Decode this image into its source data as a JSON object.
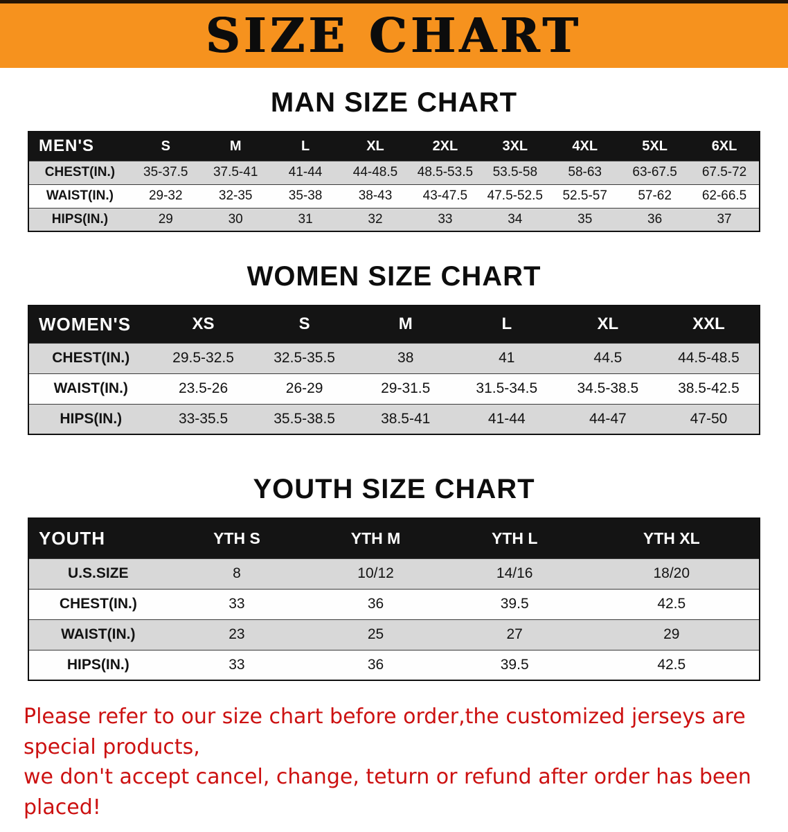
{
  "banner": {
    "title": "SIZE CHART",
    "bg_color": "#f6921e"
  },
  "sections": [
    {
      "heading": "MAN SIZE CHART",
      "table": {
        "header": [
          "MEN'S",
          "S",
          "M",
          "L",
          "XL",
          "2XL",
          "3XL",
          "4XL",
          "5XL",
          "6XL"
        ],
        "rows": [
          [
            "CHEST(IN.)",
            "35-37.5",
            "37.5-41",
            "41-44",
            "44-48.5",
            "48.5-53.5",
            "53.5-58",
            "58-63",
            "63-67.5",
            "67.5-72"
          ],
          [
            "WAIST(IN.)",
            "29-32",
            "32-35",
            "35-38",
            "38-43",
            "43-47.5",
            "47.5-52.5",
            "52.5-57",
            "57-62",
            "62-66.5"
          ],
          [
            "HIPS(IN.)",
            "29",
            "30",
            "31",
            "32",
            "33",
            "34",
            "35",
            "36",
            "37"
          ]
        ]
      }
    },
    {
      "heading": "WOMEN SIZE CHART",
      "table": {
        "header": [
          "WOMEN'S",
          "XS",
          "S",
          "M",
          "L",
          "XL",
          "XXL"
        ],
        "rows": [
          [
            "CHEST(IN.)",
            "29.5-32.5",
            "32.5-35.5",
            "38",
            "41",
            "44.5",
            "44.5-48.5"
          ],
          [
            "WAIST(IN.)",
            "23.5-26",
            "26-29",
            "29-31.5",
            "31.5-34.5",
            "34.5-38.5",
            "38.5-42.5"
          ],
          [
            "HIPS(IN.)",
            "33-35.5",
            "35.5-38.5",
            "38.5-41",
            "41-44",
            "44-47",
            "47-50"
          ]
        ]
      }
    },
    {
      "heading": "YOUTH SIZE CHART",
      "table": {
        "header": [
          "YOUTH",
          "YTH S",
          "YTH M",
          "YTH L",
          "YTH XL"
        ],
        "rows": [
          [
            "U.S.SIZE",
            "8",
            "10/12",
            "14/16",
            "18/20"
          ],
          [
            "CHEST(IN.)",
            "33",
            "36",
            "39.5",
            "42.5"
          ],
          [
            "WAIST(IN.)",
            "23",
            "25",
            "27",
            "29"
          ],
          [
            "HIPS(IN.)",
            "33",
            "36",
            "39.5",
            "42.5"
          ]
        ]
      }
    }
  ],
  "notice": {
    "color": "#cc1111",
    "lines": [
      "Please refer to our size chart before order,the customized jerseys are special products,",
      "we don't accept cancel, change, teturn or refund after order has been placed!"
    ]
  },
  "colors": {
    "banner_orange": "#f6921e",
    "table_header_bg": "#141414",
    "row_stripe_gray": "#d8d8d8",
    "notice_red": "#cc1111"
  }
}
